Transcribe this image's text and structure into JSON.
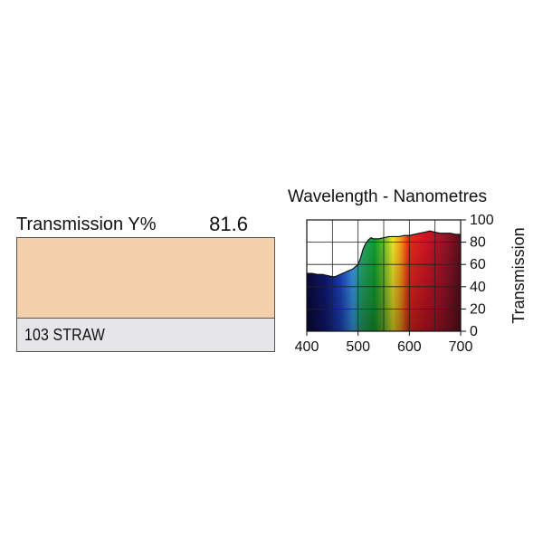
{
  "filter": {
    "transmission_label": "Transmission Y%",
    "transmission_value": "81.6",
    "name": "103 STRAW",
    "swatch_color": "#f3cfac"
  },
  "chart_data": {
    "type": "area",
    "title": "Wavelength - Nanometres",
    "xlabel": "",
    "ylabel": "Transmission",
    "xlim": [
      400,
      700
    ],
    "ylim": [
      0,
      100
    ],
    "grid": true,
    "x_ticks": [
      400,
      500,
      600,
      700
    ],
    "y_ticks": [
      0,
      20,
      40,
      60,
      80,
      100
    ],
    "fill": "visible-spectrum",
    "series": [
      {
        "x": [
          400,
          410,
          420,
          430,
          440,
          450,
          455,
          460,
          470,
          480,
          490,
          500,
          505,
          510,
          515,
          520,
          525,
          530,
          540,
          550,
          560,
          570,
          580,
          590,
          600,
          610,
          620,
          630,
          640,
          650,
          660,
          670,
          680,
          690,
          700
        ],
        "values": [
          52,
          52,
          51,
          51,
          50,
          49,
          49,
          50,
          52,
          54,
          56,
          60,
          66,
          74,
          79,
          82,
          84,
          83,
          83,
          84,
          85,
          85,
          85,
          86,
          86,
          87,
          88,
          89,
          90,
          89,
          88,
          88,
          88,
          87,
          87
        ]
      }
    ]
  }
}
